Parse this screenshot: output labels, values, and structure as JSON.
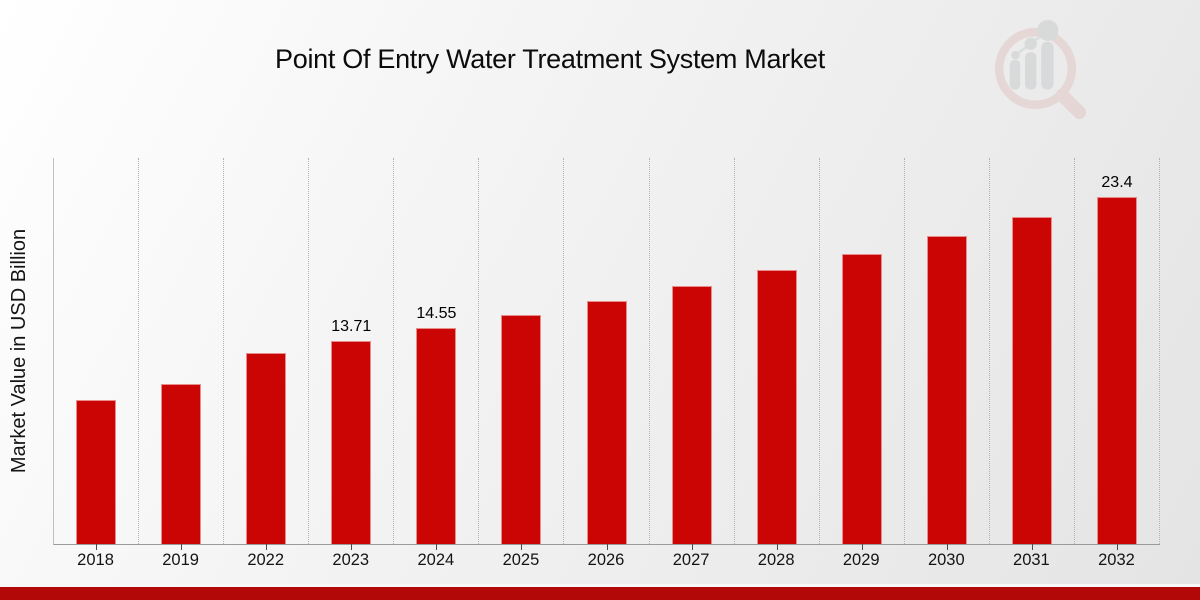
{
  "header": {
    "title": "Point Of Entry Water Treatment System Market"
  },
  "watermark": {
    "icon": "magnifier-bar-chart-logo"
  },
  "chart_data": {
    "type": "bar",
    "title": "Point Of Entry Water Treatment System Market",
    "xlabel": "",
    "ylabel": "Market Value in USD Billion",
    "categories": [
      "2018",
      "2019",
      "2022",
      "2023",
      "2024",
      "2025",
      "2026",
      "2027",
      "2028",
      "2029",
      "2030",
      "2031",
      "2032"
    ],
    "values": [
      9.7,
      10.8,
      12.9,
      13.71,
      14.55,
      15.44,
      16.38,
      17.38,
      18.44,
      19.56,
      20.75,
      22.06,
      23.4
    ],
    "bar_labels": [
      "",
      "",
      "",
      "13.71",
      "14.55",
      "",
      "",
      "",
      "",
      "",
      "",
      "",
      "23.4"
    ],
    "ylim": [
      0,
      26
    ],
    "grid": "vertical-dotted",
    "legend_position": "none",
    "bar_color": "#cb0404"
  },
  "colors": {
    "bar": "#cb0404",
    "bottom_strip": "#b30808",
    "gridline": "#b2b2b2",
    "axis_line": "#9a9a9a",
    "text": "#141414",
    "background_start": "#ffffff",
    "background_end": "#e4e4e4",
    "logo_pink": "#e2c4c4",
    "logo_gray": "#c6c9cb"
  }
}
